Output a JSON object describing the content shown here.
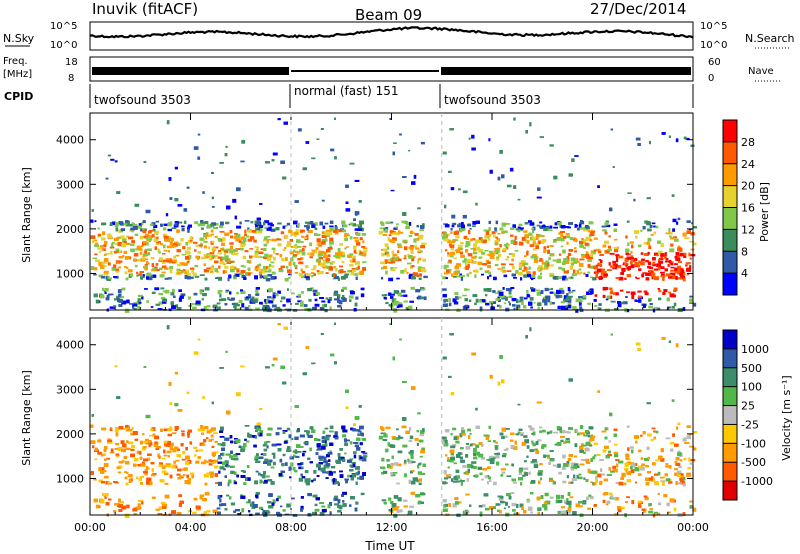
{
  "header": {
    "station": "Inuvik (fitACF)",
    "beam": "Beam 09",
    "date": "27/Dec/2014"
  },
  "status_panels": {
    "nsky_label": "N.Sky",
    "nsearch_label": "N.Search",
    "noise_ticks": [
      "10^5",
      "10^0"
    ],
    "freq_label": "Freq.",
    "freq_unit": "[MHz]",
    "freq_ticks": [
      "18",
      "8"
    ],
    "nave_label": "Nave",
    "nave_ticks": [
      "60",
      "0"
    ],
    "cpid_label": "CPID",
    "modes": [
      {
        "name": "twofsound 3503",
        "start_hour": 0,
        "end_hour": 8
      },
      {
        "name": "normal (fast) 151",
        "start_hour": 8,
        "end_hour": 14
      },
      {
        "name": "twofsound 3503",
        "start_hour": 14,
        "end_hour": 24
      }
    ]
  },
  "colors": {
    "power_scale": [
      "#0000ff",
      "#2e5aa8",
      "#3a8c5a",
      "#7fc84a",
      "#e6d22e",
      "#ff9a00",
      "#ff5a00",
      "#ff0000"
    ],
    "velocity_scale": [
      "#e00000",
      "#ff5a00",
      "#ff9a00",
      "#ffc800",
      "#bbbbbb",
      "#4fb848",
      "#3c8e6a",
      "#2e5aa8",
      "#0000c8"
    ]
  },
  "chart_data": [
    {
      "type": "heatmap",
      "name": "power",
      "xlabel": "",
      "ylabel": "Slant Range [km]",
      "xlim": [
        0,
        24
      ],
      "ylim": [
        180,
        4600
      ],
      "yticks": [
        "1000",
        "2000",
        "3000",
        "4000"
      ],
      "colorbar_label": "Power [dB]",
      "colorbar_ticks": [
        "4",
        "8",
        "12",
        "16",
        "20",
        "24",
        "28"
      ],
      "main_echo_band_km": [
        900,
        2200
      ],
      "near_range_band_km": [
        200,
        700
      ],
      "strong_power_region": {
        "hours": [
          20,
          24
        ],
        "range_km": [
          500,
          1500
        ],
        "power_db": 30
      }
    },
    {
      "type": "heatmap",
      "name": "velocity",
      "xlabel": "Time UT",
      "ylabel": "Slant Range [km]",
      "xlim": [
        0,
        24
      ],
      "ylim": [
        180,
        4600
      ],
      "xticks": [
        "00:00",
        "04:00",
        "08:00",
        "12:00",
        "16:00",
        "20:00",
        "00:00"
      ],
      "yticks": [
        "1000",
        "2000",
        "3000",
        "4000"
      ],
      "colorbar_label": "Velocity [m s⁻¹]",
      "colorbar_ticks": [
        "1000",
        "500",
        "100",
        "25",
        "-25",
        "-100",
        "-500",
        "-1000"
      ],
      "dominant_velocity_by_period": [
        {
          "hours": [
            0,
            5
          ],
          "velocity": "-100 to -500"
        },
        {
          "hours": [
            5,
            11
          ],
          "velocity": "100 to 500"
        },
        {
          "hours": [
            14,
            20
          ],
          "velocity": "25 to 100"
        },
        {
          "hours": [
            20,
            24
          ],
          "velocity": "-25 to -100"
        }
      ]
    }
  ]
}
